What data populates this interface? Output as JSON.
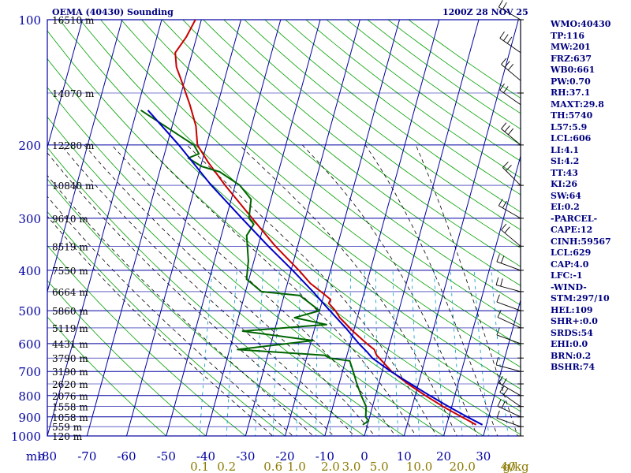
{
  "header": {
    "title": "OEMA (40430) Sounding",
    "time": "1200Z 28 NOV 25"
  },
  "indices": [
    "WMO:40430",
    "TP:116",
    "MW:201",
    "FRZ:637",
    "WB0:661",
    "PW:0.70",
    "RH:37.1",
    "MAXT:29.8",
    "TH:5740",
    "L57:5.9",
    "LCL:606",
    "LI:4.1",
    "SI:4.2",
    "TT:43",
    "KI:26",
    "SW:64",
    "EI:0.2",
    "-PARCEL-",
    "CAPE:12",
    "CINH:59567",
    "LCL:629",
    "CAP:4.0",
    "LFC:-1",
    "-WIND-",
    "STM:297/10",
    "HEL:109",
    "SHR+:0.0",
    "SRDS:54",
    "EHI:0.0",
    "BRN:0.2",
    "BSHR:74"
  ],
  "colors": {
    "grid": "#0000a0",
    "dry_adiabats": "#00a000",
    "moist_adiabats": "#000000",
    "mixing_ratio": "#0096c8",
    "temperature": "#c80000",
    "dewpoint": "#006400",
    "parcel": "#0000c8",
    "axis_text": "#0000a0",
    "mixing_text": "#8c7a00"
  },
  "chart_data": {
    "type": "line",
    "subtype": "skew-T log-P",
    "title": "OEMA (40430) Sounding",
    "xlabel": "",
    "ylabel": "mb",
    "pressure_axis": {
      "scale": "log",
      "range": [
        1000,
        100
      ],
      "ticks": [
        100,
        200,
        300,
        400,
        500,
        600,
        700,
        800,
        900,
        1000
      ]
    },
    "temperature_axis": {
      "range": [
        -80,
        40
      ],
      "unit": "C",
      "ticks": [
        -80,
        -70,
        -60,
        -50,
        -40,
        -30,
        -20,
        -10,
        0,
        10,
        20,
        30
      ]
    },
    "height_labels": [
      {
        "p": 100,
        "label": "16510 m"
      },
      {
        "p": 150,
        "label": "14070 m"
      },
      {
        "p": 200,
        "label": "12280 m"
      },
      {
        "p": 250,
        "label": "10840 m"
      },
      {
        "p": 300,
        "label": "9610 m"
      },
      {
        "p": 350,
        "label": "8519 m"
      },
      {
        "p": 400,
        "label": "7550 m"
      },
      {
        "p": 450,
        "label": "6664 m"
      },
      {
        "p": 500,
        "label": "5860 m"
      },
      {
        "p": 550,
        "label": "5119 m"
      },
      {
        "p": 600,
        "label": "4431 m"
      },
      {
        "p": 650,
        "label": "3790 m"
      },
      {
        "p": 700,
        "label": "3190 m"
      },
      {
        "p": 750,
        "label": "2620 m"
      },
      {
        "p": 800,
        "label": "2076 m"
      },
      {
        "p": 850,
        "label": "1558 m"
      },
      {
        "p": 900,
        "label": "1058 m"
      },
      {
        "p": 950,
        "label": "559 m"
      },
      {
        "p": 1000,
        "label": "120 m"
      }
    ],
    "mixing_ratio_labels": [
      {
        "w": 0.1,
        "label": "0.1"
      },
      {
        "w": 0.2,
        "label": "0.2"
      },
      {
        "w": 0.6,
        "label": "0.6"
      },
      {
        "w": 1.0,
        "label": "1.0"
      },
      {
        "w": 2.0,
        "label": "2.0"
      },
      {
        "w": 3.0,
        "label": "3.0"
      },
      {
        "w": 5.0,
        "label": "5.0"
      },
      {
        "w": 10.0,
        "label": "10.0"
      },
      {
        "w": 20.0,
        "label": "20.0"
      },
      {
        "w": 40.0,
        "label": "40"
      }
    ],
    "mixing_ratio_unit": "g/kg",
    "series": [
      {
        "key": "temperature",
        "points": [
          [
            940,
            27.4
          ],
          [
            900,
            23.2
          ],
          [
            850,
            17.8
          ],
          [
            800,
            12.6
          ],
          [
            750,
            7.4
          ],
          [
            700,
            2.4
          ],
          [
            660,
            -0.8
          ],
          [
            640,
            -2.5
          ],
          [
            620,
            -3.5
          ],
          [
            600,
            -5.8
          ],
          [
            560,
            -10.2
          ],
          [
            520,
            -14.4
          ],
          [
            500,
            -16.0
          ],
          [
            480,
            -18.2
          ],
          [
            470,
            -18.0
          ],
          [
            450,
            -21.0
          ],
          [
            430,
            -24.2
          ],
          [
            400,
            -28.0
          ],
          [
            350,
            -35.6
          ],
          [
            300,
            -43.4
          ],
          [
            250,
            -52.5
          ],
          [
            220,
            -58.4
          ],
          [
            200,
            -62.3
          ],
          [
            180,
            -64.0
          ],
          [
            160,
            -67.0
          ],
          [
            140,
            -70.8
          ],
          [
            130,
            -73.0
          ],
          [
            120,
            -74.3
          ],
          [
            110,
            -72.6
          ],
          [
            100,
            -71.5
          ]
        ]
      },
      {
        "key": "dewpoint",
        "points": [
          [
            940,
            -1.2
          ],
          [
            920,
            0.0
          ],
          [
            900,
            -1.0
          ],
          [
            850,
            -1.6
          ],
          [
            800,
            -3.6
          ],
          [
            750,
            -5.5
          ],
          [
            700,
            -7.3
          ],
          [
            660,
            -8.9
          ],
          [
            650,
            -14.2
          ],
          [
            640,
            -15.6
          ],
          [
            620,
            -38.0
          ],
          [
            590,
            -19.6
          ],
          [
            560,
            -38.0
          ],
          [
            540,
            -17.3
          ],
          [
            520,
            -25.8
          ],
          [
            500,
            -20.0
          ],
          [
            460,
            -26.0
          ],
          [
            450,
            -36.0
          ],
          [
            420,
            -40.6
          ],
          [
            380,
            -41.4
          ],
          [
            330,
            -43.6
          ],
          [
            310,
            -42.6
          ],
          [
            300,
            -44.2
          ],
          [
            270,
            -45.0
          ],
          [
            250,
            -48.8
          ],
          [
            232,
            -54.8
          ],
          [
            225,
            -59.8
          ],
          [
            215,
            -63.7
          ],
          [
            210,
            -61.3
          ],
          [
            200,
            -63.2
          ],
          [
            165,
            -79.0
          ]
        ]
      },
      {
        "key": "parcel",
        "points": [
          [
            940,
            29.0
          ],
          [
            900,
            24.6
          ],
          [
            850,
            19.2
          ],
          [
            800,
            13.7
          ],
          [
            750,
            8.1
          ],
          [
            700,
            2.2
          ],
          [
            650,
            -3.4
          ],
          [
            630,
            -5.0
          ],
          [
            600,
            -7.8
          ],
          [
            550,
            -12.2
          ],
          [
            500,
            -17.4
          ],
          [
            450,
            -23.0
          ],
          [
            400,
            -29.6
          ],
          [
            350,
            -37.4
          ],
          [
            300,
            -46.0
          ],
          [
            250,
            -56.0
          ],
          [
            200,
            -67.0
          ],
          [
            165,
            -77.2
          ]
        ]
      }
    ]
  }
}
